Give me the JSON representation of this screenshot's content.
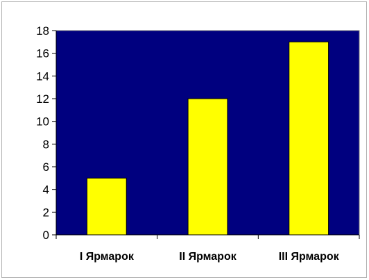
{
  "chart_data": {
    "type": "bar",
    "categories": [
      "I Ярмарок",
      "II Ярмарок",
      "III Ярмарок"
    ],
    "values": [
      5,
      12,
      17
    ],
    "title": "",
    "xlabel": "",
    "ylabel": "",
    "ylim": [
      0,
      18
    ],
    "yticks": [
      "0",
      "2",
      "4",
      "6",
      "8",
      "10",
      "12",
      "14",
      "16",
      "18"
    ],
    "grid": false,
    "legend": "none",
    "colors": {
      "plot_background": "#00007f",
      "bar_fill": "#ffff00",
      "bar_stroke": "#000000",
      "axis": "#000000"
    }
  }
}
